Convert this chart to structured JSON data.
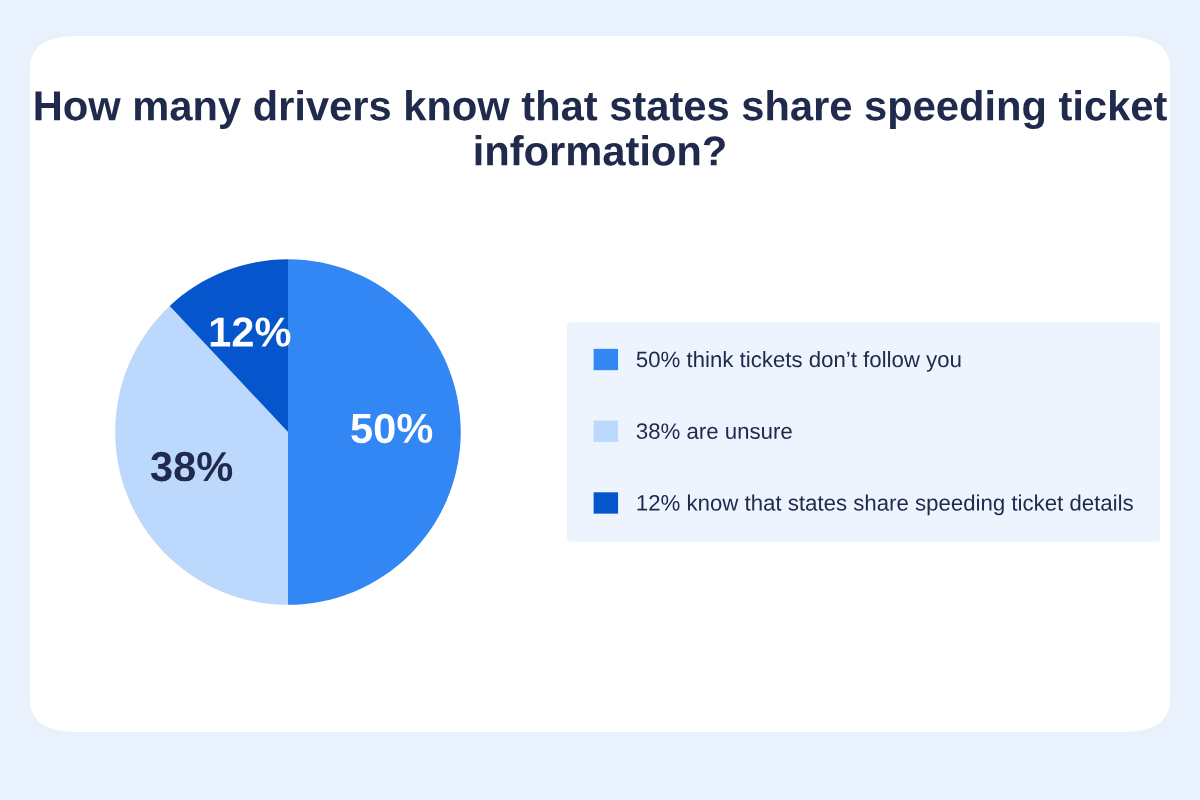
{
  "chart_data": {
    "type": "pie",
    "title": "How many drivers know that states share speeding ticket information?",
    "categories": [
      "50% think tickets don’t follow you",
      "38% are unsure",
      "12% know that states share speeding ticket details"
    ],
    "values": [
      50,
      38,
      12
    ],
    "colors": [
      "#3387f5",
      "#bcd8fc",
      "#0555cc"
    ],
    "value_labels": [
      "50%",
      "38%",
      "12%"
    ],
    "legend": "right"
  }
}
